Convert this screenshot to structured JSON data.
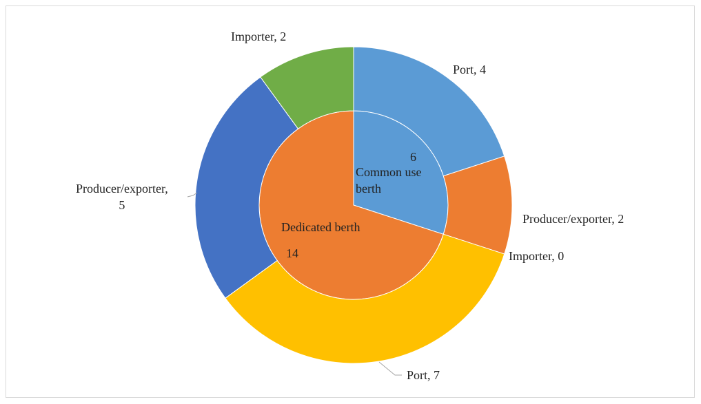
{
  "chart_data": {
    "type": "sunburst",
    "series": [
      {
        "name": "Common use berth",
        "value": 6,
        "color": "#5b9bd5",
        "children": [
          {
            "name": "Port",
            "value": 4,
            "color": "#5b9bd5"
          },
          {
            "name": "Producer/exporter",
            "value": 2,
            "color": "#ed7d31"
          },
          {
            "name": "Importer",
            "value": 0,
            "color": "#a5a5a5"
          }
        ]
      },
      {
        "name": "Dedicated berth",
        "value": 14,
        "color": "#ed7d31",
        "children": [
          {
            "name": "Port",
            "value": 7,
            "color": "#ffc000"
          },
          {
            "name": "Producer/exporter",
            "value": 5,
            "color": "#4472c4"
          },
          {
            "name": "Importer",
            "value": 2,
            "color": "#70ad47"
          }
        ]
      }
    ]
  }
}
